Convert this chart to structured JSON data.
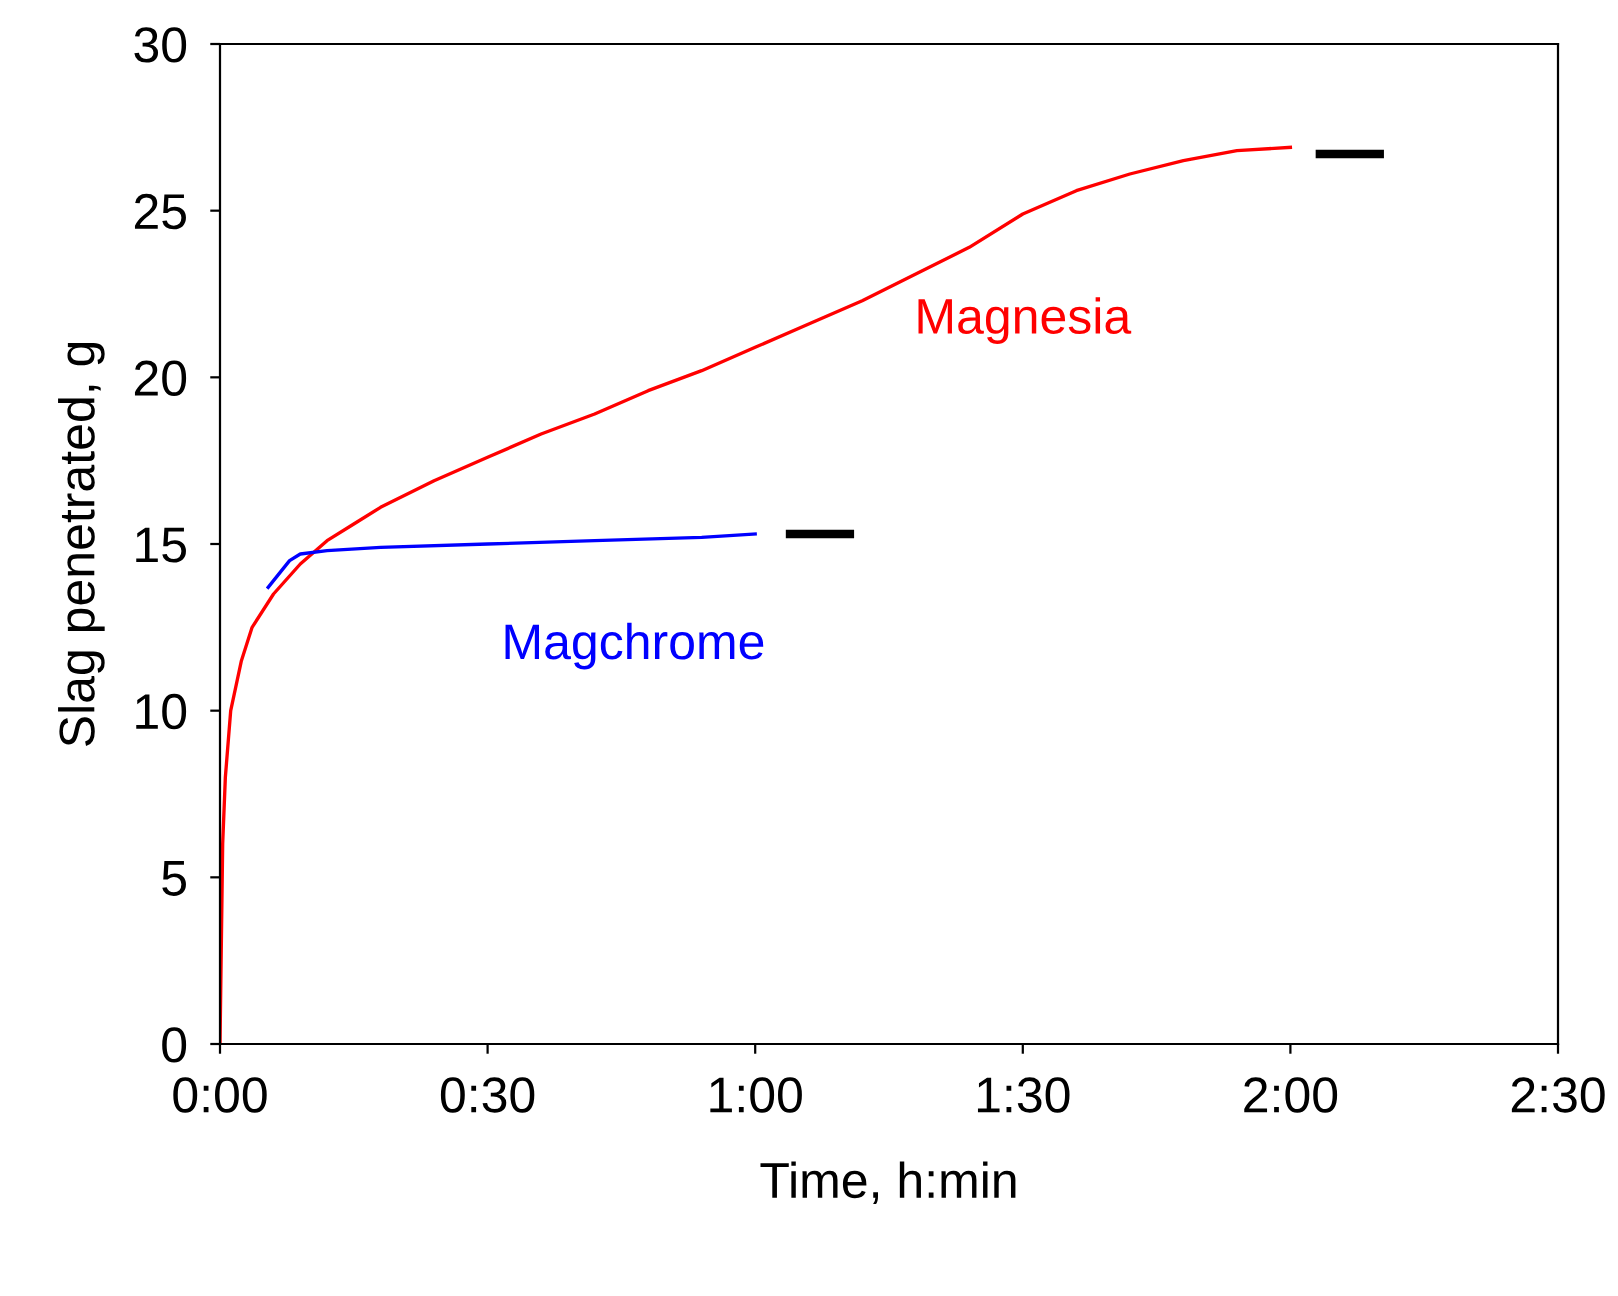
{
  "chart_data": {
    "type": "line",
    "xlabel": "Time, h:min",
    "ylabel": "Slag penetrated, g",
    "xlim": [
      0,
      2.5
    ],
    "xticks": [
      {
        "value": 0,
        "label": "0:00"
      },
      {
        "value": 0.5,
        "label": "0:30"
      },
      {
        "value": 1,
        "label": "1:00"
      },
      {
        "value": 1.5,
        "label": "1:30"
      },
      {
        "value": 2,
        "label": "2:00"
      },
      {
        "value": 2.5,
        "label": "2:30"
      }
    ],
    "ylim": [
      0,
      30
    ],
    "yticks": [
      0,
      5,
      10,
      15,
      20,
      25,
      30
    ],
    "grid": false,
    "legend": false,
    "marker": "none",
    "line_style": "solid",
    "series": [
      {
        "name": "Magnesia",
        "color": "#ff0000",
        "x": [
          0,
          0.005,
          0.01,
          0.02,
          0.04,
          0.06,
          0.1,
          0.15,
          0.2,
          0.25,
          0.3,
          0.4,
          0.5,
          0.6,
          0.7,
          0.8,
          0.9,
          1.0,
          1.1,
          1.2,
          1.3,
          1.4,
          1.5,
          1.6,
          1.7,
          1.8,
          1.9,
          2.0
        ],
        "values": [
          0,
          6,
          8,
          10,
          11.5,
          12.5,
          13.5,
          14.4,
          15.1,
          15.6,
          16.1,
          16.9,
          17.6,
          18.3,
          18.9,
          19.6,
          20.2,
          20.9,
          21.6,
          22.3,
          23.1,
          23.9,
          24.9,
          25.6,
          26.1,
          26.5,
          26.8,
          26.9
        ]
      },
      {
        "name": "Magchrome",
        "color": "#0000ff",
        "x": [
          0.09,
          0.1,
          0.13,
          0.15,
          0.2,
          0.3,
          0.5,
          0.7,
          0.9,
          1.0
        ],
        "values": [
          13.7,
          13.9,
          14.5,
          14.7,
          14.8,
          14.9,
          15.0,
          15.1,
          15.2,
          15.3
        ]
      },
      {
        "color": "#000000",
        "x": [
          1.065,
          1.177
        ],
        "values": [
          15.3,
          15.3
        ]
      },
      {
        "color": "#000000",
        "x": [
          2.055,
          2.167
        ],
        "values": [
          26.7,
          26.7
        ]
      }
    ]
  }
}
